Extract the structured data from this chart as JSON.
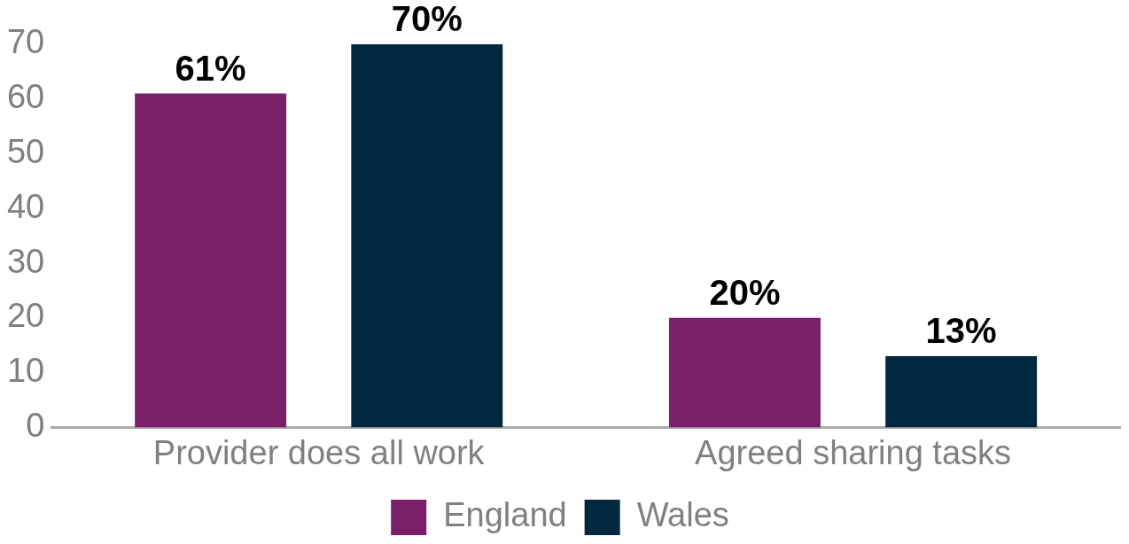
{
  "chart_data": {
    "type": "bar",
    "categories": [
      "Provider does all work",
      "Agreed sharing tasks"
    ],
    "series": [
      {
        "name": "England",
        "color": "#7a1f6a",
        "values": [
          61,
          20
        ],
        "value_labels": [
          "61%",
          "20%"
        ]
      },
      {
        "name": "Wales",
        "color": "#022840",
        "values": [
          70,
          13
        ],
        "value_labels": [
          "70%",
          "13%"
        ]
      }
    ],
    "ylim": [
      0,
      70
    ],
    "yticks": [
      0,
      10,
      20,
      30,
      40,
      50,
      60,
      70
    ],
    "grid": false,
    "legend": "bottom"
  }
}
